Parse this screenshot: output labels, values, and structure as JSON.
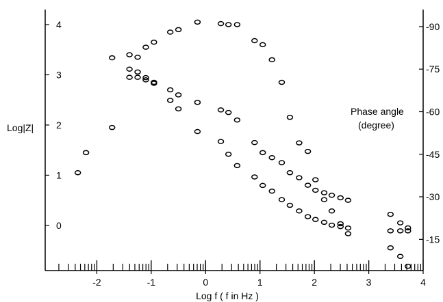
{
  "chart_data": {
    "type": "scatter",
    "title": "",
    "xlabel": "Log f ( f in Hz )",
    "ylabel_left": "Log|Z|",
    "ylabel_right_line1": "Phase angle",
    "ylabel_right_line2": "(degree)",
    "xlim": [
      -2.95,
      4.0
    ],
    "ylim_left": [
      -0.9,
      4.3
    ],
    "ylim_right": [
      4,
      96
    ],
    "x_ticks": [
      -2,
      -1,
      0,
      1,
      2,
      3,
      4
    ],
    "x_tick_labels": [
      "-2",
      "-1",
      "0",
      "1",
      "2",
      "3",
      "4"
    ],
    "left_ticks": [
      0,
      1,
      2,
      3,
      4
    ],
    "left_tick_labels": [
      "0",
      "1",
      "2",
      "3",
      "4"
    ],
    "right_ticks": [
      15,
      30,
      45,
      60,
      75,
      90
    ],
    "right_tick_labels": [
      "-15",
      "-30",
      "-45",
      "-60",
      "-75",
      "-90"
    ],
    "grid": false,
    "legend": "none",
    "series": [
      {
        "axis": "left",
        "x": [
          -2.35,
          -2.2,
          -1.72,
          -1.4,
          -1.25,
          -1.1,
          -0.95,
          -0.65,
          -0.5,
          -0.15,
          0.28,
          0.42,
          0.58,
          0.9,
          1.05,
          1.22,
          1.4,
          1.55,
          1.72,
          1.88,
          2.02,
          2.18,
          2.32,
          2.48,
          2.62,
          3.4,
          3.58,
          3.72
        ],
        "y": [
          1.05,
          1.45,
          1.95,
          2.95,
          2.95,
          2.9,
          2.85,
          2.7,
          2.6,
          2.45,
          2.3,
          2.25,
          2.1,
          1.65,
          1.45,
          1.35,
          1.25,
          1.05,
          0.95,
          0.8,
          0.7,
          0.65,
          0.6,
          0.55,
          0.5,
          0.22,
          0.05,
          -0.05
        ]
      },
      {
        "axis": "right",
        "x": [
          -1.72,
          -1.4,
          -1.25,
          -1.1,
          -0.95,
          -0.65,
          -0.5,
          -0.15,
          0.28,
          0.42,
          0.58,
          0.9,
          1.05,
          1.22,
          1.4,
          1.55,
          1.72,
          1.88,
          2.02,
          2.18,
          2.32,
          2.48,
          2.62,
          3.4,
          3.58,
          3.72
        ],
        "y": [
          79,
          75,
          74,
          72,
          70,
          64,
          61,
          53,
          49.5,
          45,
          41,
          37,
          34,
          32,
          29,
          27,
          25,
          23,
          22,
          21,
          20,
          19.5,
          17,
          12,
          9,
          5.5
        ]
      },
      {
        "axis": "left",
        "x": [
          -1.4,
          -1.25,
          -1.1,
          -0.95,
          -0.65,
          -0.5,
          -0.15,
          0.28,
          0.42,
          0.58,
          0.9,
          1.05,
          1.22,
          1.4
        ],
        "y": [
          3.4,
          3.35,
          3.55,
          3.65,
          3.85,
          3.9,
          4.05,
          4.02,
          4.0,
          4.0,
          3.68,
          3.6,
          3.3,
          2.85
        ]
      },
      {
        "axis": "right",
        "x": [
          1.55,
          1.72,
          1.88,
          2.02,
          2.18,
          2.32,
          2.48,
          2.62,
          3.4,
          3.58,
          3.72
        ],
        "y": [
          58,
          49,
          46,
          36,
          29,
          25,
          20.5,
          19,
          18,
          18,
          18
        ]
      }
    ]
  }
}
